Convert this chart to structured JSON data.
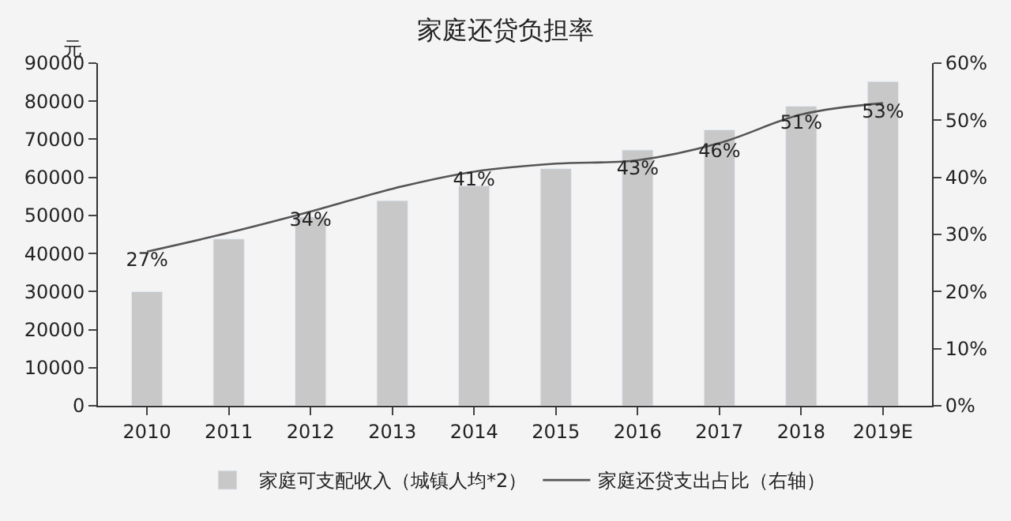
{
  "chart_data": {
    "type": "bar",
    "title": "家庭还贷负担率",
    "ylabel": "元",
    "categories": [
      "2010",
      "2011",
      "2012",
      "2013",
      "2014",
      "2015",
      "2016",
      "2017",
      "2018",
      "2019E"
    ],
    "series": [
      {
        "name": "家庭可支配收入（城镇人均*2）",
        "color": "#c8c8c8",
        "values": [
          30000,
          43800,
          49600,
          53900,
          57800,
          62300,
          67200,
          72500,
          78700,
          85200
        ]
      },
      {
        "name": "家庭还贷支出占比（右轴）",
        "type": "line",
        "axis": "y2",
        "color": "#555555",
        "values": [
          27,
          30.3,
          34,
          38,
          41,
          42.4,
          43,
          46,
          51,
          53
        ],
        "value_labels": [
          "27%",
          null,
          "34%",
          null,
          "41%",
          null,
          "43%",
          "46%",
          "51%",
          "53%"
        ]
      }
    ],
    "ylim": [
      0,
      90000
    ],
    "yticks": [
      0,
      10000,
      20000,
      30000,
      40000,
      50000,
      60000,
      70000,
      80000,
      90000
    ],
    "y2lim": [
      0,
      60
    ],
    "y2ticks": [
      {
        "value": 0,
        "label": "0%"
      },
      {
        "value": 10,
        "label": "10%"
      },
      {
        "value": 20,
        "label": "20%"
      },
      {
        "value": 30,
        "label": "30%"
      },
      {
        "value": 40,
        "label": "40%"
      },
      {
        "value": 50,
        "label": "50%"
      },
      {
        "value": 60,
        "label": "60%"
      }
    ],
    "grid": false,
    "legend": "bottom",
    "marker": "none",
    "line_style": "solid"
  }
}
